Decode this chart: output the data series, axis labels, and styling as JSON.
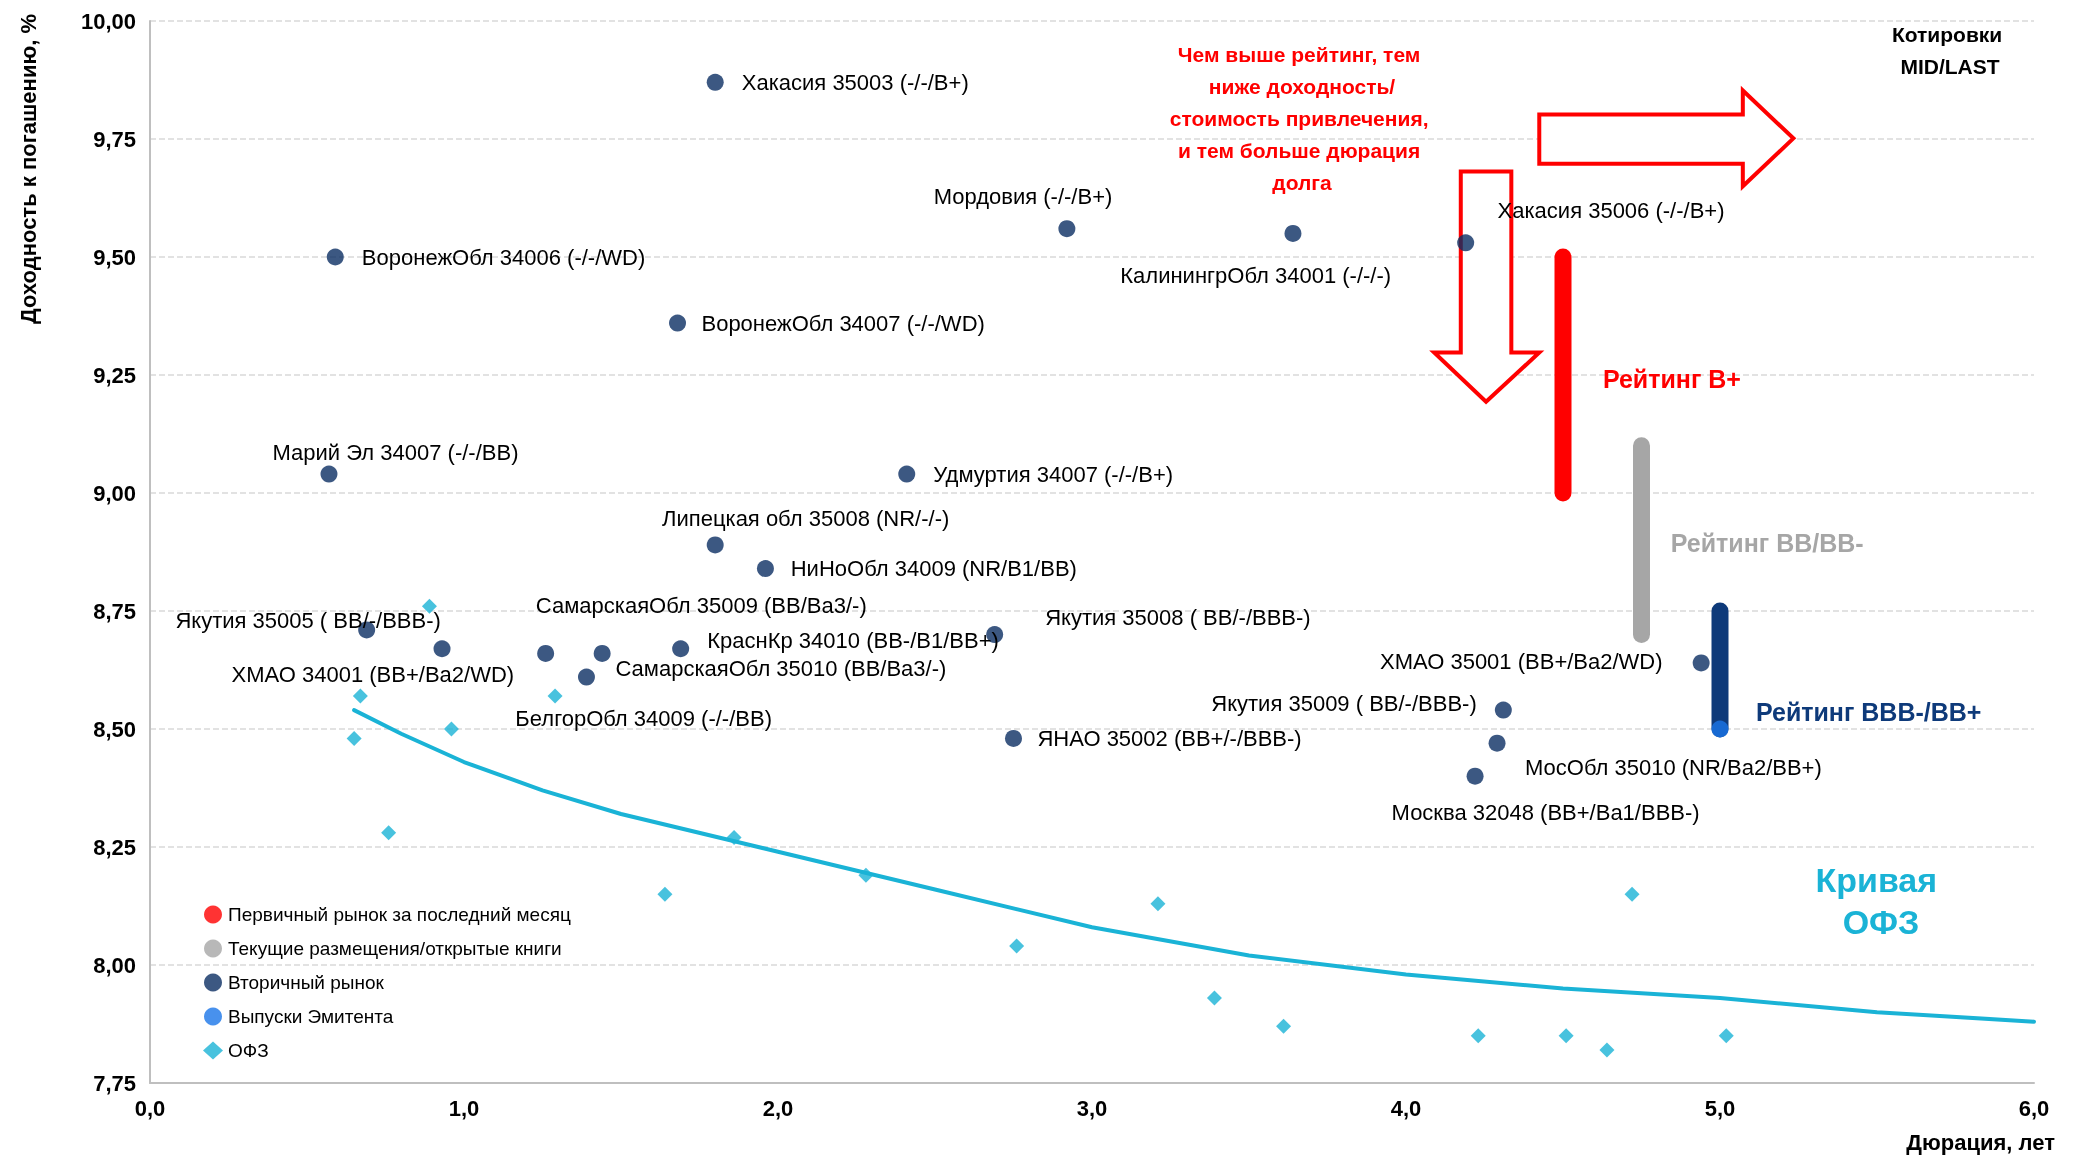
{
  "chart_data": {
    "type": "scatter",
    "xlabel": "Дюрация, лет",
    "ylabel": "Доходность к погашению, %",
    "xlim": [
      0,
      6
    ],
    "xticks": [
      {
        "value": 0,
        "label": "0,0"
      },
      {
        "value": 1,
        "label": "1,0"
      },
      {
        "value": 2,
        "label": "2,0"
      },
      {
        "value": 3,
        "label": "3,0"
      },
      {
        "value": 4,
        "label": "4,0"
      },
      {
        "value": 5,
        "label": "5,0"
      },
      {
        "value": 6,
        "label": "6,0"
      }
    ],
    "ylim": [
      7.75,
      10
    ],
    "yticks": [
      {
        "value": 7.75,
        "label": "7,75"
      },
      {
        "value": 8,
        "label": "8,00"
      },
      {
        "value": 8.25,
        "label": "8,25"
      },
      {
        "value": 8.5,
        "label": "8,50"
      },
      {
        "value": 8.75,
        "label": "8,75"
      },
      {
        "value": 9,
        "label": "9,00"
      },
      {
        "value": 9.25,
        "label": "9,25"
      },
      {
        "value": 9.5,
        "label": "9,50"
      },
      {
        "value": 9.75,
        "label": "9,75"
      },
      {
        "value": 10,
        "label": "10,00"
      }
    ],
    "grid": "y",
    "legend": "bottom left",
    "series": [
      {
        "name": "Первичный рынок за последний месяц",
        "marker": "circle",
        "color": "#ff0000"
      },
      {
        "name": "Текущие размещения/открытые книги",
        "marker": "circle",
        "color": "#a6a6a6"
      },
      {
        "name": "Вторичный рынок",
        "marker": "circle",
        "color": "#0b2e63",
        "x": [
          1.8,
          2.92,
          3.64,
          4.19,
          0.59,
          1.68,
          0.57,
          2.41,
          1.8,
          1.96,
          0.69,
          0.93,
          1.26,
          1.39,
          1.44,
          1.69,
          2.69,
          2.75,
          4.94,
          4.31,
          4.29,
          4.22
        ],
        "values": [
          9.87,
          9.56,
          9.55,
          9.53,
          9.5,
          9.36,
          9.04,
          9.04,
          8.89,
          8.84,
          8.71,
          8.67,
          8.66,
          8.61,
          8.66,
          8.67,
          8.7,
          8.48,
          8.64,
          8.54,
          8.47,
          8.4
        ]
      },
      {
        "name": "Выпуски Эмитента",
        "marker": "circle",
        "color": "#1a75e8",
        "x": [
          5.0
        ],
        "values": [
          8.5
        ]
      },
      {
        "name": "ОФЗ",
        "marker": "diamond",
        "color": "#1ab3d6",
        "x": [
          0.67,
          0.65,
          0.89,
          0.76,
          0.96,
          1.29,
          1.64,
          1.86,
          2.28,
          2.76,
          3.21,
          3.39,
          3.61,
          4.23,
          4.51,
          4.64,
          4.72,
          5.02
        ],
        "values": [
          8.57,
          8.48,
          8.76,
          8.28,
          8.5,
          8.57,
          8.15,
          8.27,
          8.19,
          8.04,
          8.13,
          7.93,
          7.87,
          7.85,
          7.85,
          7.82,
          8.15,
          7.85
        ]
      },
      {
        "name": "Кривая ОФЗ",
        "type": "line",
        "marker": "none",
        "color": "#1ab3d6",
        "x": [
          0.65,
          0.8,
          1.0,
          1.25,
          1.5,
          2.0,
          2.5,
          3.0,
          3.5,
          4.0,
          4.5,
          5.0,
          5.5,
          6.0
        ],
        "values": [
          8.54,
          8.49,
          8.43,
          8.37,
          8.32,
          8.24,
          8.16,
          8.08,
          8.02,
          7.98,
          7.95,
          7.93,
          7.9,
          7.88
        ]
      },
      {
        "name": "Рейтинг B+",
        "type": "line",
        "marker": "none",
        "color": "#ff0000",
        "x": [
          4.5,
          4.5
        ],
        "values": [
          9.0,
          9.5
        ]
      },
      {
        "name": "Рейтинг BB/BB-",
        "type": "line",
        "marker": "none",
        "color": "#a6a6a6",
        "x": [
          4.75,
          4.75
        ],
        "values": [
          8.7,
          9.1
        ]
      },
      {
        "name": "Рейтинг BBB-/BB+",
        "type": "line",
        "marker": "none",
        "color": "#0e3a7a",
        "x": [
          5.0,
          5.0
        ],
        "values": [
          8.5,
          8.75
        ]
      }
    ],
    "annotations": [
      {
        "text": "Хакасия 35003 (-/-/B+)",
        "x": 1.8,
        "y": 9.87
      },
      {
        "text": "Мордовия (-/-/B+)",
        "x": 2.92,
        "y": 9.56
      },
      {
        "text": "КалинингрОбл 34001 (-/-/-)",
        "x": 3.64,
        "y": 9.55
      },
      {
        "text": "Хакасия 35006 (-/-/B+)",
        "x": 4.19,
        "y": 9.53
      },
      {
        "text": "ВоронежОбл 34006 (-/-/WD)",
        "x": 0.59,
        "y": 9.5
      },
      {
        "text": "ВоронежОбл 34007 (-/-/WD)",
        "x": 1.68,
        "y": 9.36
      },
      {
        "text": "Марий Эл 34007 (-/-/BB)",
        "x": 0.57,
        "y": 9.04
      },
      {
        "text": "Удмуртия 34007 (-/-/B+)",
        "x": 2.41,
        "y": 9.04
      },
      {
        "text": "Липецкая обл 35008 (NR/-/-)",
        "x": 1.8,
        "y": 8.89
      },
      {
        "text": "НиНоОбл 34009 (NR/B1/BB)",
        "x": 1.96,
        "y": 8.84
      },
      {
        "text": "Якутия 35005 ( BB/-/BBB-)",
        "x": 0.69,
        "y": 8.71
      },
      {
        "text": "ХМАО 34001 (BB+/Ba2/WD)",
        "x": 0.93,
        "y": 8.67
      },
      {
        "text": "СамарскаяОбл 35009 (BB/Ba3/-)",
        "x": 1.26,
        "y": 8.66
      },
      {
        "text": "БелгорОбл 34009 (-/-/BB)",
        "x": 1.39,
        "y": 8.61
      },
      {
        "text": "СамарскаяОбл 35010 (BB/Ba3/-)",
        "x": 1.44,
        "y": 8.66
      },
      {
        "text": "КраснКр 34010 (BB-/B1/BB+)",
        "x": 1.69,
        "y": 8.67
      },
      {
        "text": "Якутия 35008 ( BB/-/BBB-)",
        "x": 2.69,
        "y": 8.7
      },
      {
        "text": "ЯНАО 35002 (BB+/-/BBB-)",
        "x": 2.75,
        "y": 8.48
      },
      {
        "text": "ХМАО 35001 (BB+/Ba2/WD)",
        "x": 4.94,
        "y": 8.64
      },
      {
        "text": "Якутия 35009 ( BB/-/BBB-)",
        "x": 4.31,
        "y": 8.54
      },
      {
        "text": "МосОбл 35010 (NR/Ba2/BB+)",
        "x": 4.29,
        "y": 8.47
      },
      {
        "text": "Москва 32048 (BB+/Ba1/BBB-)",
        "x": 4.22,
        "y": 8.4
      },
      "Котировки MID/LAST",
      "Чем выше рейтинг, тем ниже доходность/стоимость привлечения, и тем больше дюрация долга"
    ]
  }
}
